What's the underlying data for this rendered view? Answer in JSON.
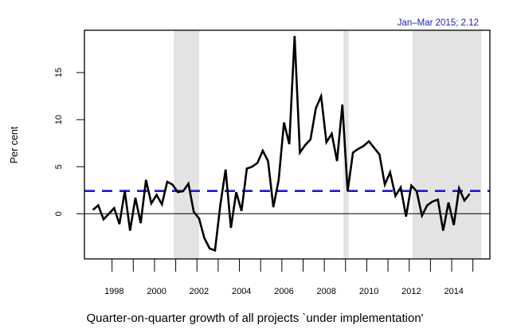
{
  "chart_data": {
    "type": "line",
    "title": "",
    "caption": "Quarter-on-quarter growth of all projects `under implementation'",
    "xlabel": "",
    "ylabel": "Per cent",
    "annotation": "Jan–Mar 2015; 2.12",
    "xlim": [
      1996.6,
      2015.7
    ],
    "ylim": [
      -4.8,
      19.5
    ],
    "x_tick_labels": [
      "1998",
      "2000",
      "2002",
      "2004",
      "2006",
      "2008",
      "2010",
      "2012",
      "2014"
    ],
    "x_tick_label_values": [
      1998,
      2000,
      2002,
      2004,
      2006,
      2008,
      2010,
      2012,
      2014
    ],
    "x_tick_marks": [
      1997.9,
      1998.9,
      1999.9,
      2000.9,
      2001.9,
      2002.9,
      2003.9,
      2004.9,
      2005.9,
      2006.9,
      2007.9,
      2008.9,
      2009.9,
      2010.9,
      2011.9,
      2012.9,
      2013.9,
      2014.9
    ],
    "y_ticks": [
      0,
      5,
      10,
      15
    ],
    "y_tick_labels": [
      "0",
      "5",
      "10",
      "15"
    ],
    "grid": false,
    "reference_lines": [
      {
        "name": "zero-line",
        "value": 0,
        "color": "#000000",
        "style": "solid"
      },
      {
        "name": "mean-line",
        "value": 2.42,
        "color": "#1a1ad0",
        "style": "dashed"
      }
    ],
    "shaded_periods": [
      {
        "start": 2000.8,
        "end": 2002.0
      },
      {
        "start": 2008.8,
        "end": 2009.05
      },
      {
        "start": 2012.05,
        "end": 2015.3
      }
    ],
    "series": [
      {
        "name": "Quarter-on-quarter growth",
        "color": "#000000",
        "x_start": 1997.0,
        "x_step": 0.25,
        "values": [
          0.4,
          0.9,
          -0.6,
          0.0,
          0.6,
          -1.1,
          2.4,
          -1.8,
          1.7,
          -1.0,
          3.6,
          1.1,
          2.0,
          1.0,
          3.4,
          3.1,
          2.3,
          2.4,
          3.2,
          0.2,
          -0.5,
          -2.6,
          -3.7,
          -3.9,
          0.9,
          4.7,
          -1.5,
          2.3,
          0.3,
          4.8,
          5.0,
          5.4,
          6.7,
          5.6,
          0.7,
          3.6,
          9.7,
          7.4,
          18.9,
          6.5,
          7.3,
          7.9,
          11.2,
          12.5,
          7.6,
          8.5,
          5.6,
          11.6,
          2.4,
          6.5,
          6.9,
          7.2,
          7.7,
          7.0,
          6.3,
          3.1,
          4.4,
          1.9,
          2.8,
          -0.3,
          3.0,
          2.4,
          -0.2,
          0.9,
          1.3,
          1.5,
          -1.8,
          1.2,
          -1.2,
          2.7,
          1.4,
          2.12
        ]
      }
    ]
  }
}
